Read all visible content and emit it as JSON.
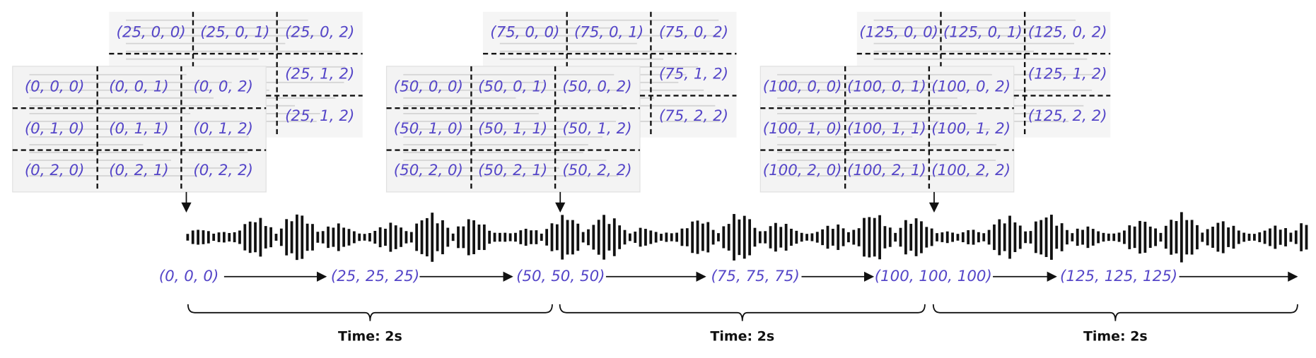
{
  "groups": [
    {
      "back": [
        "(25, 0, 0)",
        "(25, 0, 1)",
        "(25, 0, 2)",
        "(25, 1, 2)",
        "(25, 1, 2)"
      ],
      "front": [
        "(0, 0, 0)",
        "(0, 0, 1)",
        "(0, 0, 2)",
        "(0, 1, 0)",
        "(0, 1, 1)",
        "(0, 1, 2)",
        "(0, 2, 0)",
        "(0, 2, 1)",
        "(0, 2, 2)"
      ]
    },
    {
      "back": [
        "(75, 0, 0)",
        "(75, 0, 1)",
        "(75, 0, 2)",
        "(75, 1, 2)",
        "(75, 2, 2)"
      ],
      "front": [
        "(50, 0, 0)",
        "(50, 0, 1)",
        "(50, 0, 2)",
        "(50, 1, 0)",
        "(50, 1, 1)",
        "(50, 1, 2)",
        "(50, 2, 0)",
        "(50, 2, 1)",
        "(50, 2, 2)"
      ]
    },
    {
      "back": [
        "(125, 0, 0)",
        "(125, 0, 1)",
        "(125, 0, 2)",
        "(125, 1, 2)",
        "(125, 2, 2)"
      ],
      "front": [
        "(100, 0, 0)",
        "(100, 0, 1)",
        "(100, 0, 2)",
        "(100, 1, 0)",
        "(100, 1, 1)",
        "(100, 1, 2)",
        "(100, 2, 0)",
        "(100, 2, 1)",
        "(100, 2, 2)"
      ]
    }
  ],
  "timeline": [
    "(0, 0, 0)",
    "(25, 25, 25)",
    "(50, 50, 50)",
    "(75, 75, 75)",
    "(100, 100, 100)",
    "(125, 125, 125)"
  ],
  "durations": [
    "Time: 2s",
    "Time: 2s",
    "Time: 2s"
  ]
}
